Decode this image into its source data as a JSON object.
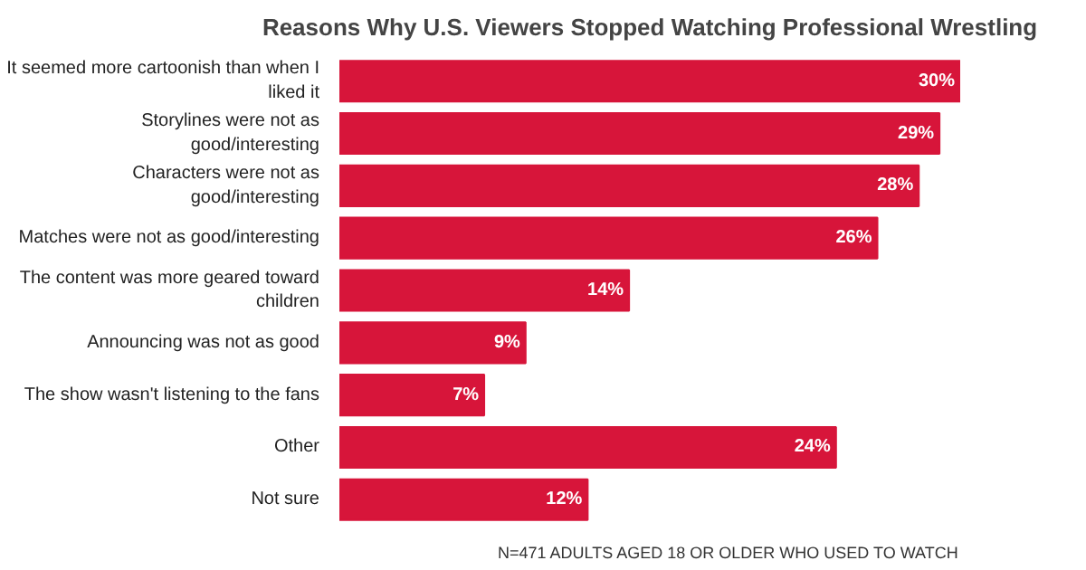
{
  "chart_data": {
    "type": "bar",
    "orientation": "horizontal",
    "title": "Reasons Why U.S. Viewers Stopped Watching Professional Wrestling",
    "categories": [
      "It seemed more cartoonish than when I liked it",
      "Storylines were not as good/interesting",
      "Characters were not as good/interesting",
      "Matches were not as good/interesting",
      "The content was more geared toward children",
      "Announcing was not as good",
      "The show wasn't listening to the fans",
      "Other",
      "Not sure"
    ],
    "values": [
      30,
      29,
      28,
      26,
      14,
      9,
      7,
      24,
      12
    ],
    "value_labels": [
      "30%",
      "29%",
      "28%",
      "26%",
      "14%",
      "9%",
      "7%",
      "24%",
      "12%"
    ],
    "color": "#d7153a",
    "annotations": [
      "N=471 ADULTS AGED 18 OR OLDER WHO USED TO WATCH"
    ]
  }
}
